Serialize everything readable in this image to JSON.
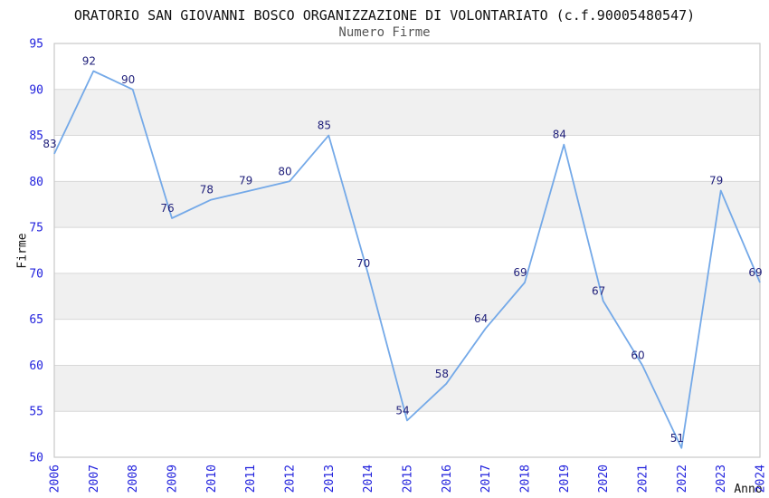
{
  "header": {
    "title": "ORATORIO SAN GIOVANNI BOSCO ORGANIZZAZIONE DI VOLONTARIATO (c.f.90005480547)",
    "subtitle": "Numero Firme"
  },
  "axes": {
    "x_label": "Anno",
    "y_label": "Firme"
  },
  "colors": {
    "line": "#74a9e8",
    "point_label": "#1f1f7a",
    "tick_label": "#2222dd",
    "grid_line": "#d8d8d8",
    "band_fill": "#f0f0f0",
    "plot_border": "#c9c9c9"
  },
  "chart_data": {
    "type": "line",
    "title": "ORATORIO SAN GIOVANNI BOSCO ORGANIZZAZIONE DI VOLONTARIATO (c.f.90005480547)",
    "subtitle": "Numero Firme",
    "xlabel": "Anno",
    "ylabel": "Firme",
    "categories": [
      2006,
      2007,
      2008,
      2009,
      2010,
      2011,
      2012,
      2013,
      2014,
      2015,
      2016,
      2017,
      2018,
      2019,
      2020,
      2021,
      2022,
      2023,
      2024
    ],
    "values": [
      83,
      92,
      90,
      76,
      78,
      79,
      80,
      85,
      70,
      54,
      58,
      64,
      69,
      84,
      67,
      60,
      51,
      79,
      69
    ],
    "ylim": [
      50,
      95
    ],
    "ytick_step": 5,
    "grid": "horizontal-only",
    "alternating_bands": true,
    "point_labels": "values",
    "legend": "none",
    "x_tick_rotation": -90
  }
}
